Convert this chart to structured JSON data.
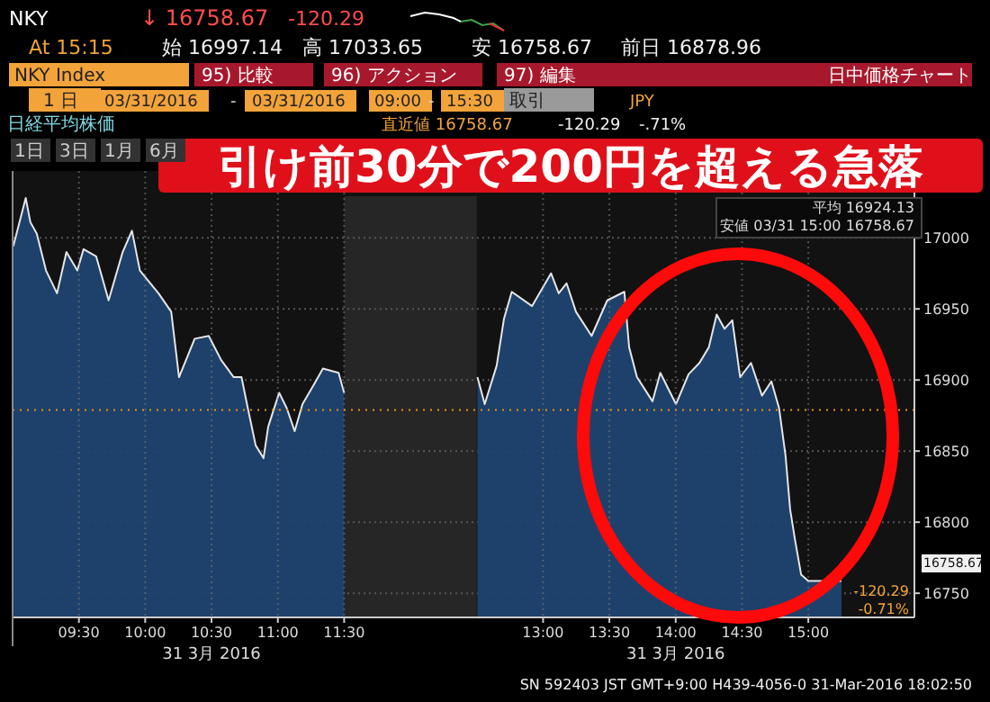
{
  "chart_data": {
    "type": "area",
    "title": "引け前30分で200円を超える急落",
    "x": [
      9.005,
      9.099,
      9.134,
      9.182,
      9.252,
      9.335,
      9.406,
      9.488,
      9.535,
      9.63,
      9.724,
      9.83,
      9.9,
      9.96,
      10.1,
      10.196,
      10.255,
      10.373,
      10.479,
      10.573,
      10.667,
      10.726,
      10.774,
      10.833,
      10.892,
      10.927,
      11.01,
      11.068,
      11.127,
      11.186,
      11.28,
      11.34,
      11.458,
      11.5,
      null,
      12.505,
      12.56,
      12.65,
      12.705,
      12.764,
      12.917,
      13.06,
      13.118,
      13.177,
      13.248,
      13.366,
      13.484,
      13.613,
      13.649,
      13.708,
      13.825,
      13.884,
      14.002,
      14.097,
      14.179,
      14.25,
      14.309,
      14.368,
      14.427,
      14.486,
      14.568,
      14.651,
      14.722,
      14.78,
      14.828,
      14.863,
      14.899,
      14.946,
      15.0,
      15.25
    ],
    "series": [
      {
        "color": "#1f4470",
        "values": [
          16994,
          17028,
          17011,
          17003,
          16977,
          16961,
          16990,
          16977,
          16992,
          16987,
          16956,
          16990,
          17005,
          16977,
          16961,
          16948,
          16902,
          16929,
          16931,
          16914,
          16902,
          16902,
          16880,
          16854,
          16845,
          16867,
          16891,
          16880,
          16864,
          16883,
          16898,
          16908,
          16905,
          16891,
          null,
          16902,
          16883,
          16910,
          16943,
          16962,
          16952,
          16975,
          16961,
          16968,
          16948,
          16931,
          16956,
          16962,
          16923,
          16902,
          16885,
          16905,
          16883,
          16904,
          16912,
          16923,
          16946,
          16936,
          16942,
          16902,
          16912,
          16889,
          16899,
          16880,
          16847,
          16809,
          16788,
          16763,
          16758.67,
          16758.67
        ]
      }
    ],
    "xlim": [
      9,
      15.8
    ],
    "xticks": [
      {
        "value": 9.5,
        "label": "09:30"
      },
      {
        "value": 10,
        "label": "10:00"
      },
      {
        "value": 10.5,
        "label": "10:30"
      },
      {
        "value": 11,
        "label": "11:00"
      },
      {
        "value": 11.5,
        "label": "11:30"
      },
      {
        "value": 13,
        "label": "13:00"
      },
      {
        "value": 13.5,
        "label": "13:30"
      },
      {
        "value": 14,
        "label": "14:00"
      },
      {
        "value": 14.5,
        "label": "14:30"
      },
      {
        "value": 15,
        "label": "15:00"
      }
    ],
    "ylim": [
      16733,
      17047
    ],
    "yticks": [
      16750,
      16800,
      16850,
      16900,
      16950,
      17000
    ],
    "grid": true,
    "ref_lines": [
      {
        "axis": "y",
        "value": 16878.96,
        "color": "#e8901a",
        "line_style": "dotted"
      }
    ],
    "bands": [
      {
        "axis": "x",
        "from": 11.5,
        "to": 12.5,
        "color": "#262626"
      }
    ],
    "annotations": [
      "NKY",
      "↓ 16758.67",
      "-120.29",
      "At 15:15",
      "始 16997.14",
      "高 17033.65",
      "安 16758.67",
      "前日 16878.96",
      "NKY Index",
      "95) 比較",
      "96) アクション",
      "97) 編集",
      "日中価格チャート",
      "1 日",
      "03/31/2016",
      "-",
      "03/31/2016",
      "09:00",
      "-",
      "15:30",
      "取引",
      "JPY",
      "日経平均株価",
      "直近値 16758.67",
      "-120.29",
      "-.71%",
      "1日",
      "3日",
      "1月",
      "6月",
      "平均 16924.13",
      "安値 03/31 15:00 16758.67",
      "16758.67",
      "-120.29",
      "-0.71%",
      "31 3月 2016",
      "31 3月 2016",
      "SN 592403 JST GMT+9:00 H439-4056-0 31-Mar-2016 18:02:50"
    ]
  }
}
